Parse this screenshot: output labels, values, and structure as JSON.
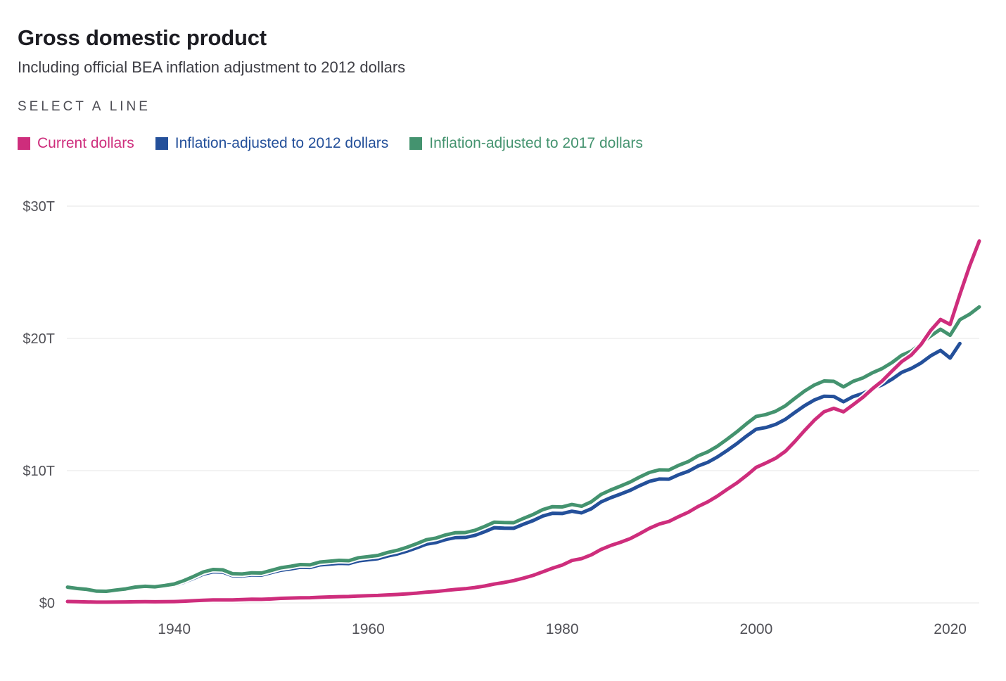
{
  "header": {
    "title": "Gross domestic product",
    "subtitle": "Including official BEA inflation adjustment to 2012 dollars"
  },
  "legend": {
    "heading": "SELECT A LINE",
    "items": [
      {
        "label": "Current dollars",
        "color": "#ce2d7c"
      },
      {
        "label": "Inflation-adjusted to 2012 dollars",
        "color": "#24509a"
      },
      {
        "label": "Inflation-adjusted to 2017 dollars",
        "color": "#44936f"
      }
    ]
  },
  "chart_data": {
    "type": "line",
    "title": "Gross domestic product",
    "subtitle": "Including official BEA inflation adjustment to 2012 dollars",
    "units": "trillions of US dollars",
    "xlim": [
      1929,
      2023
    ],
    "ylim": [
      0,
      30
    ],
    "yticks": [
      0,
      10,
      20,
      30
    ],
    "ytick_labels": [
      "$0",
      "$10T",
      "$20T",
      "$30T"
    ],
    "xticks": [
      1940,
      1960,
      1980,
      2000,
      2020
    ],
    "grid": "horizontal",
    "legend_position": "top",
    "series": [
      {
        "name": "Current dollars",
        "color": "#ce2d7c",
        "start_year": 1929,
        "end_year": 2023,
        "values": [
          0.105,
          0.092,
          0.077,
          0.06,
          0.057,
          0.067,
          0.074,
          0.085,
          0.093,
          0.087,
          0.093,
          0.103,
          0.129,
          0.166,
          0.203,
          0.224,
          0.228,
          0.228,
          0.25,
          0.275,
          0.273,
          0.3,
          0.347,
          0.368,
          0.39,
          0.391,
          0.426,
          0.45,
          0.475,
          0.482,
          0.522,
          0.542,
          0.562,
          0.604,
          0.638,
          0.685,
          0.742,
          0.813,
          0.86,
          0.94,
          1.018,
          1.073,
          1.165,
          1.279,
          1.425,
          1.545,
          1.685,
          1.873,
          2.082,
          2.352,
          2.627,
          2.857,
          3.207,
          3.344,
          3.634,
          4.038,
          4.339,
          4.58,
          4.855,
          5.236,
          5.642,
          5.963,
          6.158,
          6.52,
          6.859,
          7.287,
          7.64,
          8.073,
          8.578,
          9.063,
          9.631,
          10.251,
          10.582,
          10.936,
          11.458,
          12.214,
          13.037,
          13.815,
          14.452,
          14.713,
          14.449,
          14.992,
          15.543,
          16.197,
          16.785,
          17.527,
          18.238,
          18.745,
          19.543,
          20.612,
          21.433,
          21.06,
          23.315,
          25.464,
          27.361
        ]
      },
      {
        "name": "Inflation-adjusted to 2012 dollars",
        "color": "#24509a",
        "start_year": 1929,
        "end_year": 2021,
        "values": [
          1.109,
          1.015,
          0.95,
          0.828,
          0.817,
          0.906,
          0.986,
          1.113,
          1.17,
          1.132,
          1.222,
          1.33,
          1.566,
          1.862,
          2.178,
          2.352,
          2.329,
          2.058,
          2.035,
          2.119,
          2.107,
          2.29,
          2.474,
          2.575,
          2.696,
          2.68,
          2.871,
          2.932,
          2.994,
          2.972,
          3.178,
          3.26,
          3.344,
          3.548,
          3.703,
          3.916,
          4.171,
          4.446,
          4.568,
          4.792,
          4.942,
          4.951,
          5.114,
          5.383,
          5.687,
          5.656,
          5.644,
          5.949,
          6.224,
          6.568,
          6.777,
          6.759,
          6.931,
          6.806,
          7.118,
          7.633,
          7.951,
          8.226,
          8.511,
          8.867,
          9.192,
          9.366,
          9.355,
          9.685,
          9.952,
          10.352,
          10.63,
          11.031,
          11.522,
          12.038,
          12.61,
          13.131,
          13.262,
          13.493,
          13.879,
          14.406,
          14.913,
          15.338,
          15.626,
          15.605,
          15.209,
          15.599,
          15.841,
          16.197,
          16.495,
          16.912,
          17.432,
          17.731,
          18.144,
          18.688,
          19.092,
          18.509,
          19.61
        ]
      },
      {
        "name": "Inflation-adjusted to 2017 dollars",
        "color": "#44936f",
        "start_year": 1929,
        "end_year": 2023,
        "values": [
          1.191,
          1.09,
          1.02,
          0.889,
          0.878,
          0.973,
          1.06,
          1.196,
          1.257,
          1.216,
          1.312,
          1.432,
          1.687,
          2.002,
          2.341,
          2.524,
          2.5,
          2.21,
          2.186,
          2.277,
          2.263,
          2.46,
          2.658,
          2.766,
          2.897,
          2.88,
          3.084,
          3.15,
          3.217,
          3.191,
          3.413,
          3.501,
          3.592,
          3.812,
          3.979,
          4.206,
          4.479,
          4.775,
          4.905,
          5.146,
          5.306,
          5.317,
          5.492,
          5.781,
          6.108,
          6.075,
          6.062,
          6.388,
          6.684,
          7.054,
          7.277,
          7.257,
          7.441,
          7.307,
          7.642,
          8.195,
          8.537,
          8.832,
          9.138,
          9.519,
          9.869,
          10.058,
          10.046,
          10.4,
          10.687,
          11.119,
          11.418,
          11.848,
          12.375,
          12.931,
          13.543,
          14.103,
          14.241,
          14.489,
          14.901,
          15.476,
          16.019,
          16.475,
          16.781,
          16.757,
          16.335,
          16.753,
          17.013,
          17.403,
          17.722,
          18.17,
          18.723,
          19.036,
          19.612,
          20.194,
          20.692,
          20.234,
          21.408,
          21.822,
          22.377
        ]
      }
    ]
  }
}
